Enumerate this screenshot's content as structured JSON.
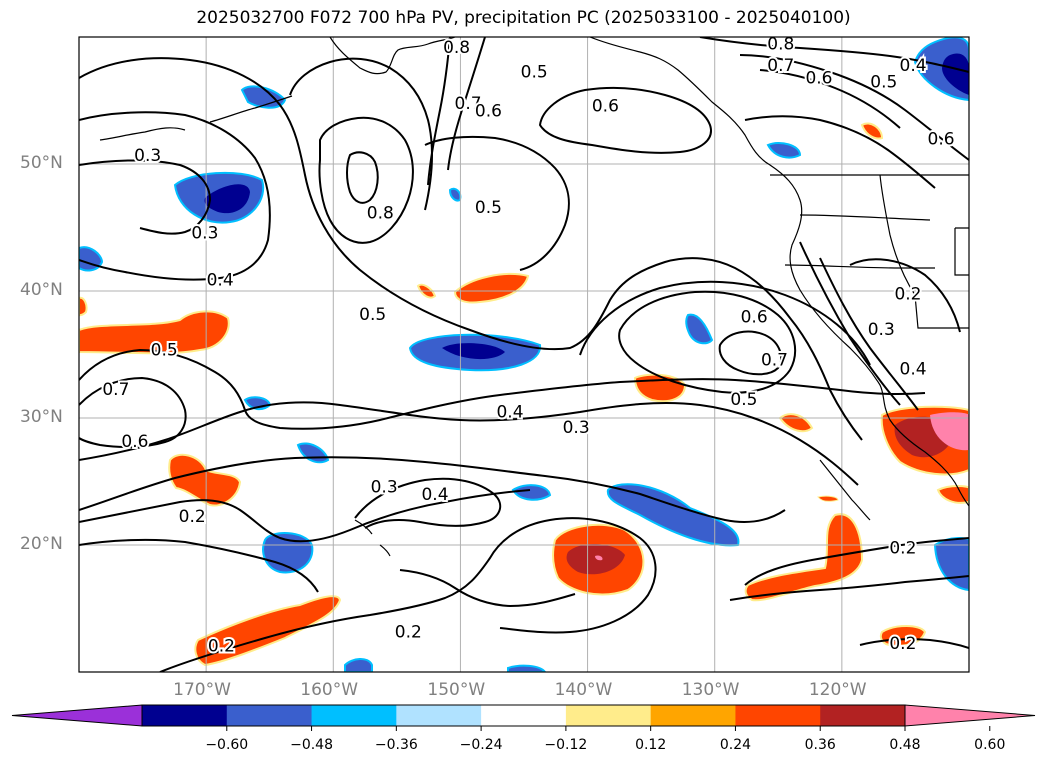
{
  "title": "2025032700 F072 700 hPa PV, precipitation PC (2025033100 - 2025040100)",
  "map": {
    "lon_range": [
      -180,
      -110
    ],
    "lat_range": [
      10,
      60
    ],
    "gridline_color": "#b0b0b0",
    "lat_ticks": [
      {
        "value": 20,
        "label": "20°N"
      },
      {
        "value": 30,
        "label": "30°N"
      },
      {
        "value": 40,
        "label": "40°N"
      },
      {
        "value": 50,
        "label": "50°N"
      }
    ],
    "lon_ticks": [
      {
        "value": -170,
        "label": "170°W"
      },
      {
        "value": -160,
        "label": "160°W"
      },
      {
        "value": -150,
        "label": "150°W"
      },
      {
        "value": -140,
        "label": "140°W"
      },
      {
        "value": -130,
        "label": "130°W"
      },
      {
        "value": -120,
        "label": "120°W"
      }
    ],
    "contour_labels": [
      {
        "text": "0.8",
        "lon": -150.3,
        "lat": 59.2
      },
      {
        "text": "0.7",
        "lon": -149.4,
        "lat": 54.8
      },
      {
        "text": "0.6",
        "lon": -147.8,
        "lat": 54.2
      },
      {
        "text": "0.5",
        "lon": -144.2,
        "lat": 57.3
      },
      {
        "text": "0.6",
        "lon": -138.6,
        "lat": 54.6
      },
      {
        "text": "0.8",
        "lon": -124.8,
        "lat": 59.5
      },
      {
        "text": "0.7",
        "lon": -124.8,
        "lat": 57.8
      },
      {
        "text": "0.6",
        "lon": -121.8,
        "lat": 56.8
      },
      {
        "text": "0.5",
        "lon": -116.7,
        "lat": 56.5
      },
      {
        "text": "0.4",
        "lon": -114.4,
        "lat": 57.8
      },
      {
        "text": "0.6",
        "lon": -112.2,
        "lat": 52.0
      },
      {
        "text": "0.3",
        "lon": -174.6,
        "lat": 50.7
      },
      {
        "text": "0.8",
        "lon": -156.3,
        "lat": 46.2
      },
      {
        "text": "0.5",
        "lon": -147.8,
        "lat": 46.6
      },
      {
        "text": "0.3",
        "lon": -170.1,
        "lat": 44.6
      },
      {
        "text": "0.4",
        "lon": -168.9,
        "lat": 40.9
      },
      {
        "text": "0.5",
        "lon": -156.9,
        "lat": 38.2
      },
      {
        "text": "0.5",
        "lon": -173.3,
        "lat": 35.4
      },
      {
        "text": "0.7",
        "lon": -177.1,
        "lat": 32.3
      },
      {
        "text": "0.6",
        "lon": -175.6,
        "lat": 28.2
      },
      {
        "text": "0.6",
        "lon": -126.9,
        "lat": 38.0
      },
      {
        "text": "0.7",
        "lon": -125.3,
        "lat": 34.6
      },
      {
        "text": "0.5",
        "lon": -127.7,
        "lat": 31.5
      },
      {
        "text": "0.4",
        "lon": -146.1,
        "lat": 30.5
      },
      {
        "text": "0.3",
        "lon": -140.9,
        "lat": 29.3
      },
      {
        "text": "0.2",
        "lon": -114.8,
        "lat": 39.8
      },
      {
        "text": "0.3",
        "lon": -116.9,
        "lat": 37.0
      },
      {
        "text": "0.4",
        "lon": -114.4,
        "lat": 33.9
      },
      {
        "text": "0.3",
        "lon": -156.0,
        "lat": 24.6
      },
      {
        "text": "0.4",
        "lon": -152.0,
        "lat": 24.0
      },
      {
        "text": "0.2",
        "lon": -171.1,
        "lat": 22.3
      },
      {
        "text": "0.2",
        "lon": -115.2,
        "lat": 19.8
      },
      {
        "text": "0.2",
        "lon": -154.1,
        "lat": 13.2
      },
      {
        "text": "0.2",
        "lon": -168.8,
        "lat": 12.1
      },
      {
        "text": "0.2",
        "lon": -115.2,
        "lat": 12.3
      }
    ]
  },
  "colorbar": {
    "colors": [
      "#9b30d9",
      "#000090",
      "#3a5fcd",
      "#00bfff",
      "#b0e2ff",
      "#ffffff",
      "#ffec8b",
      "#ffa500",
      "#ff4500",
      "#b22222",
      "#ff82ab"
    ],
    "tick_labels": [
      "−0.60",
      "−0.48",
      "−0.36",
      "−0.24",
      "−0.12",
      "0.12",
      "0.24",
      "0.36",
      "0.48",
      "0.60"
    ]
  }
}
